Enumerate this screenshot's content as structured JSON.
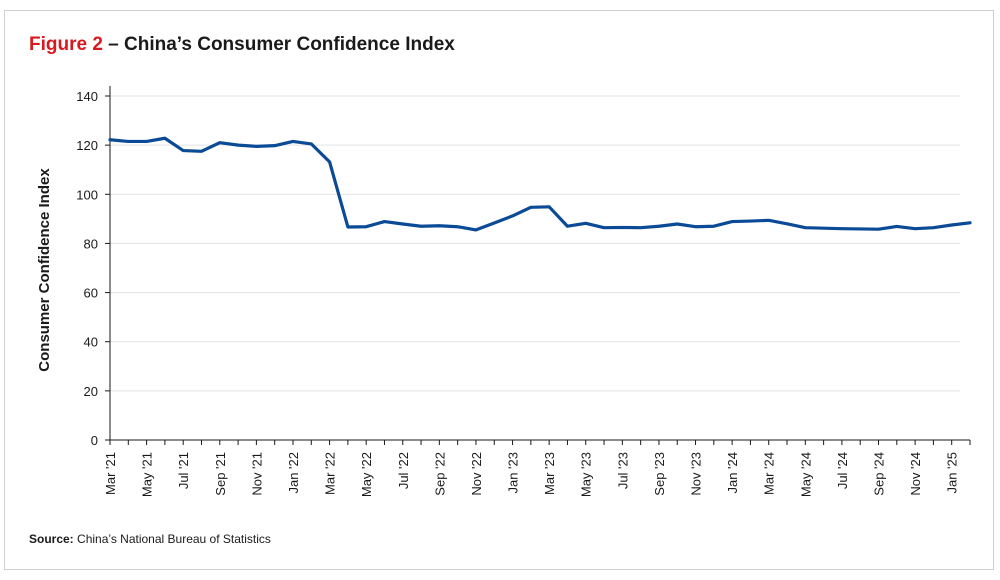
{
  "header": {
    "figure_label": "Figure 2",
    "separator": " – ",
    "title_text": "China’s Consumer Confidence Index"
  },
  "footer": {
    "source_label": "Source:",
    "source_text": " China’s National Bureau of Statistics"
  },
  "chart_data": {
    "type": "line",
    "title": "Figure 2 – China’s Consumer Confidence Index",
    "xlabel": "",
    "ylabel": "Consumer Confidence Index",
    "ylim": [
      0,
      140
    ],
    "yticks": [
      0,
      20,
      40,
      60,
      80,
      100,
      120,
      140
    ],
    "grid": true,
    "line_color": "#0a4a96",
    "x": [
      "Mar '21",
      "Apr '21",
      "May '21",
      "Jun '21",
      "Jul '21",
      "Aug '21",
      "Sep '21",
      "Oct '21",
      "Nov '21",
      "Dec '21",
      "Jan '22",
      "Feb '22",
      "Mar '22",
      "Apr '22",
      "May '22",
      "Jun '22",
      "Jul '22",
      "Aug '22",
      "Sep '22",
      "Oct '22",
      "Nov '22",
      "Dec '22",
      "Jan '23",
      "Feb '23",
      "Mar '23",
      "Apr '23",
      "May '23",
      "Jun '23",
      "Jul '23",
      "Aug '23",
      "Sep '23",
      "Oct '23",
      "Nov '23",
      "Dec '23",
      "Jan '24",
      "Feb '24",
      "Mar '24",
      "Apr '24",
      "May '24",
      "Jun '24",
      "Jul '24",
      "Aug '24",
      "Sep '24",
      "Oct '24",
      "Nov '24",
      "Dec '24",
      "Jan '25",
      "Feb '25"
    ],
    "x_tick_labels": [
      "Mar '21",
      "May '21",
      "Jul '21",
      "Sep '21",
      "Nov '21",
      "Jan '22",
      "Mar '22",
      "May '22",
      "Jul '22",
      "Sep '22",
      "Nov '22",
      "Jan '23",
      "Mar '23",
      "May '23",
      "Jul '23",
      "Sep '23",
      "Nov '23",
      "Jan '24",
      "Mar '24",
      "May '24",
      "Jul '24",
      "Sep '24",
      "Nov '24",
      "Jan '25"
    ],
    "series": [
      {
        "values": [
          122.2,
          121.5,
          121.5,
          122.8,
          117.8,
          117.5,
          121.0,
          120.0,
          119.5,
          119.8,
          121.5,
          120.5,
          113.2,
          86.7,
          86.8,
          88.9,
          87.9,
          87.0,
          87.2,
          86.8,
          85.5,
          88.3,
          91.2,
          94.7,
          94.9,
          87.0,
          88.2,
          86.4,
          86.5,
          86.4,
          87.0,
          87.9,
          86.8,
          87.0,
          88.9,
          89.1,
          89.4,
          88.0,
          86.4,
          86.2,
          86.0,
          85.9,
          85.8,
          86.9,
          86.0,
          86.4,
          87.5,
          88.4
        ]
      }
    ]
  }
}
